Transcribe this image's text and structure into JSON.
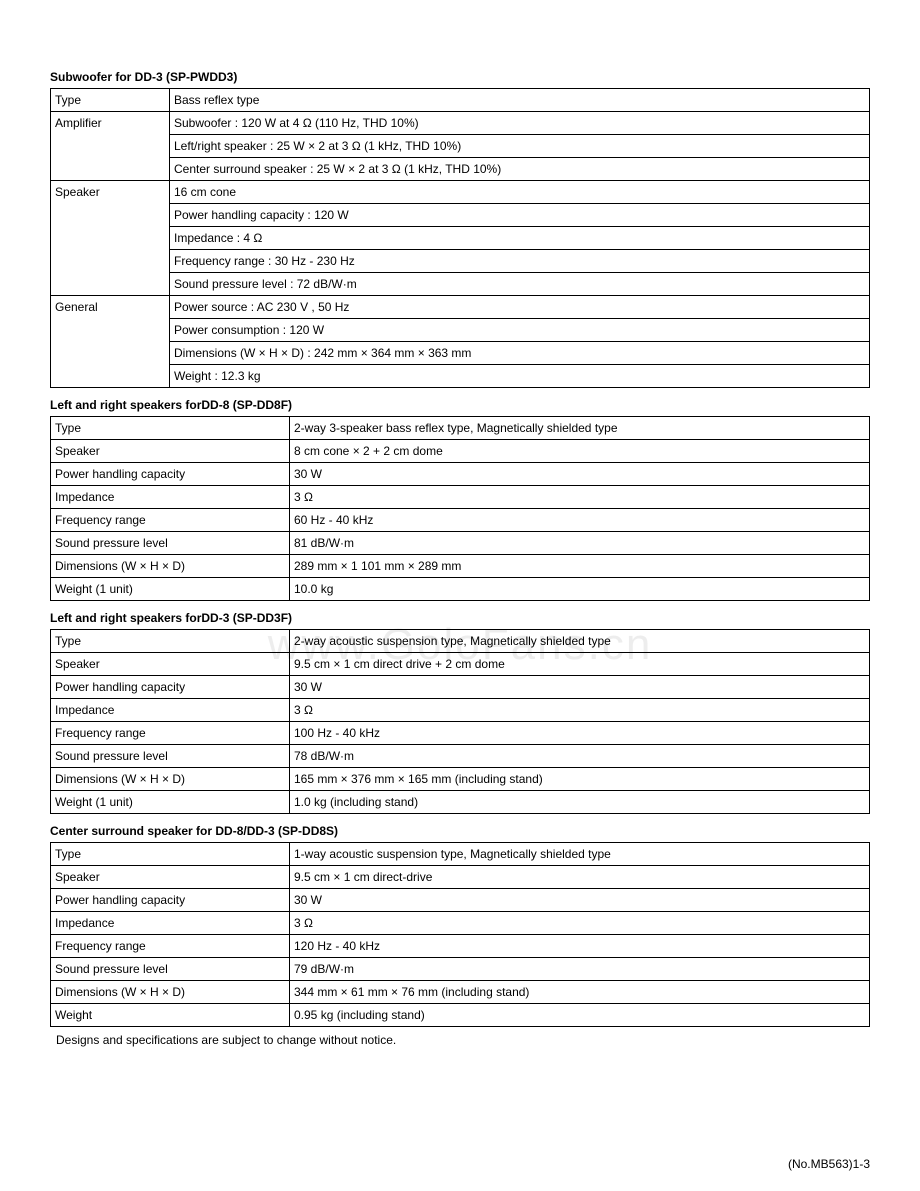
{
  "watermark": "www.GoloFans.cn",
  "footer_note": "Designs and specifications are subject to change without notice.",
  "page_number": "(No.MB563)1-3",
  "sections": [
    {
      "title": "Subwoofer for DD-3 (SP-PWDD3)",
      "layout": "grouped",
      "col1_class": "col1-narrow",
      "groups": [
        {
          "label": "Type",
          "values": [
            "Bass reflex type"
          ]
        },
        {
          "label": "Amplifier",
          "values": [
            "Subwoofer : 120 W at 4 Ω (110 Hz, THD 10%)",
            "Left/right speaker : 25 W × 2 at 3 Ω (1 kHz, THD 10%)",
            "Center surround speaker : 25 W × 2 at 3 Ω (1 kHz, THD 10%)"
          ]
        },
        {
          "label": "Speaker",
          "values": [
            "16 cm cone",
            "Power handling capacity : 120 W",
            "Impedance : 4 Ω",
            "Frequency range : 30 Hz - 230 Hz",
            "Sound pressure level : 72 dB/W·m"
          ]
        },
        {
          "label": "General",
          "values": [
            "Power source : AC 230 V  , 50 Hz",
            "Power consumption : 120 W",
            "Dimensions (W × H × D) : 242 mm × 364 mm × 363 mm",
            "Weight : 12.3 kg"
          ]
        }
      ]
    },
    {
      "title": "Left and right speakers forDD-8 (SP-DD8F)",
      "layout": "flat",
      "col1_class": "col1-wide",
      "rows": [
        [
          "Type",
          "2-way 3-speaker bass reflex type, Magnetically shielded type"
        ],
        [
          "Speaker",
          "8 cm cone × 2 + 2 cm dome"
        ],
        [
          "Power handling capacity",
          "30 W"
        ],
        [
          "Impedance",
          "3 Ω"
        ],
        [
          "Frequency range",
          "60 Hz - 40 kHz"
        ],
        [
          "Sound pressure level",
          "81 dB/W·m"
        ],
        [
          "Dimensions (W × H × D)",
          "289 mm × 1 101 mm × 289 mm"
        ],
        [
          "Weight (1 unit)",
          "10.0 kg"
        ]
      ]
    },
    {
      "title": "Left and right speakers forDD-3 (SP-DD3F)",
      "layout": "flat",
      "col1_class": "col1-wide",
      "rows": [
        [
          "Type",
          "2-way acoustic suspension type, Magnetically shielded type"
        ],
        [
          "Speaker",
          "9.5 cm × 1 cm direct drive + 2 cm dome"
        ],
        [
          "Power handling capacity",
          "30 W"
        ],
        [
          "Impedance",
          "3 Ω"
        ],
        [
          "Frequency range",
          "100 Hz - 40 kHz"
        ],
        [
          "Sound pressure level",
          "78 dB/W·m"
        ],
        [
          "Dimensions (W × H × D)",
          "165 mm × 376 mm × 165 mm (including stand)"
        ],
        [
          "Weight (1 unit)",
          "1.0 kg (including stand)"
        ]
      ]
    },
    {
      "title": "Center surround speaker for DD-8/DD-3 (SP-DD8S)",
      "layout": "flat",
      "col1_class": "col1-wide",
      "rows": [
        [
          "Type",
          "1-way acoustic suspension type, Magnetically shielded type"
        ],
        [
          "Speaker",
          "9.5 cm × 1 cm direct-drive"
        ],
        [
          "Power handling capacity",
          "30 W"
        ],
        [
          "Impedance",
          "3 Ω"
        ],
        [
          "Frequency range",
          "120 Hz - 40 kHz"
        ],
        [
          "Sound pressure level",
          "79 dB/W·m"
        ],
        [
          "Dimensions (W × H × D)",
          "344 mm × 61 mm × 76 mm (including stand)"
        ],
        [
          "Weight",
          "0.95 kg (including stand)"
        ]
      ]
    }
  ]
}
